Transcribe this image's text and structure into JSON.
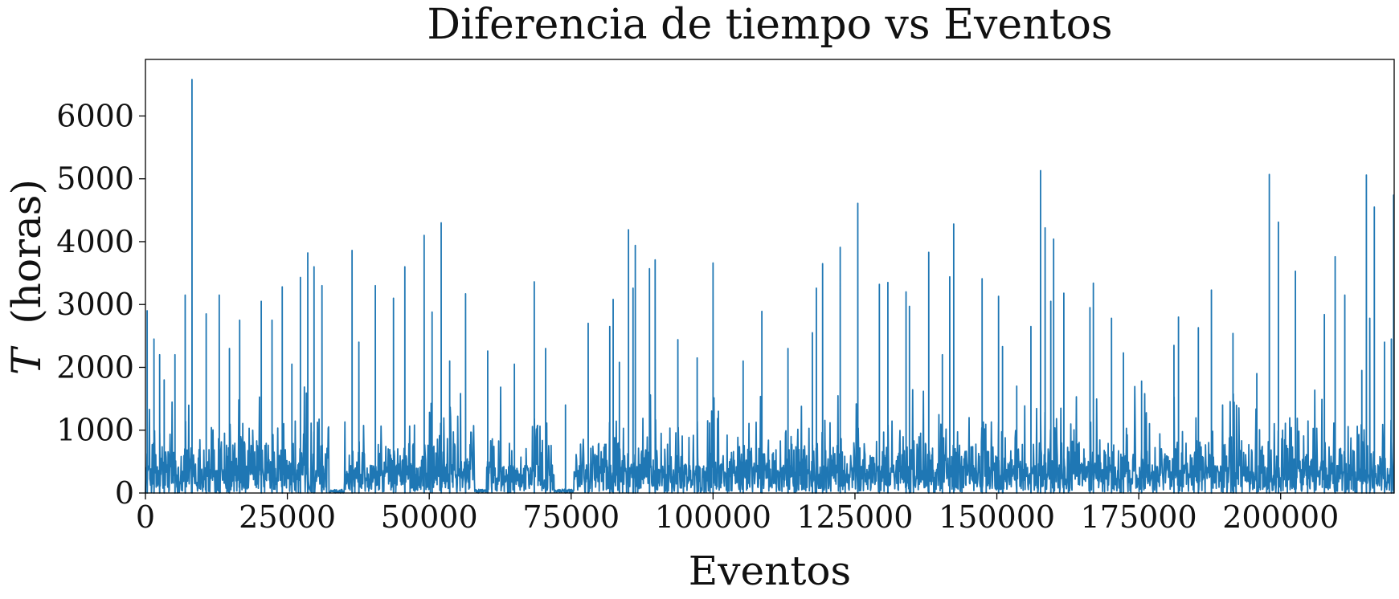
{
  "chart_data": {
    "type": "line",
    "title": "Diferencia de tiempo vs Eventos",
    "xlabel": "Eventos",
    "ylabel_var": "T",
    "ylabel_unit": "(horas)",
    "xlim": [
      0,
      220000
    ],
    "ylim": [
      0,
      6900
    ],
    "xticks": [
      0,
      25000,
      50000,
      75000,
      100000,
      125000,
      150000,
      175000,
      200000
    ],
    "yticks": [
      0,
      1000,
      2000,
      3000,
      4000,
      5000,
      6000
    ],
    "grid": false,
    "colors": {
      "series": "#1f77b4"
    },
    "series": [
      {
        "spikes": [
          [
            300,
            2900
          ],
          [
            1500,
            2450
          ],
          [
            2500,
            2200
          ],
          [
            3300,
            1800
          ],
          [
            5200,
            2200
          ],
          [
            7000,
            3150
          ],
          [
            8200,
            6580
          ],
          [
            10700,
            2850
          ],
          [
            13000,
            3150
          ],
          [
            14800,
            2300
          ],
          [
            16600,
            2750
          ],
          [
            20400,
            3050
          ],
          [
            22300,
            2750
          ],
          [
            24100,
            3280
          ],
          [
            25800,
            2050
          ],
          [
            27300,
            3430
          ],
          [
            28600,
            3820
          ],
          [
            29700,
            3600
          ],
          [
            31100,
            3300
          ],
          [
            36400,
            3860
          ],
          [
            37600,
            2400
          ],
          [
            40500,
            3300
          ],
          [
            43700,
            3100
          ],
          [
            45700,
            3600
          ],
          [
            49100,
            4100
          ],
          [
            50500,
            2880
          ],
          [
            52100,
            4300
          ],
          [
            53600,
            2100
          ],
          [
            56400,
            3170
          ],
          [
            60300,
            2260
          ],
          [
            65000,
            2050
          ],
          [
            68500,
            3360
          ],
          [
            70500,
            2300
          ],
          [
            74000,
            1400
          ],
          [
            78000,
            2700
          ],
          [
            81800,
            2650
          ],
          [
            82400,
            3080
          ],
          [
            83500,
            2080
          ],
          [
            85100,
            4190
          ],
          [
            85900,
            3260
          ],
          [
            86300,
            3940
          ],
          [
            88800,
            3570
          ],
          [
            89800,
            3710
          ],
          [
            93800,
            2440
          ],
          [
            97200,
            2150
          ],
          [
            100000,
            3660
          ],
          [
            105300,
            2100
          ],
          [
            108600,
            2890
          ],
          [
            113200,
            2300
          ],
          [
            117500,
            2550
          ],
          [
            118200,
            3260
          ],
          [
            119300,
            3650
          ],
          [
            122400,
            3910
          ],
          [
            125500,
            4610
          ],
          [
            129300,
            3320
          ],
          [
            130800,
            3350
          ],
          [
            134000,
            3200
          ],
          [
            134600,
            2970
          ],
          [
            138000,
            3830
          ],
          [
            140400,
            2200
          ],
          [
            141700,
            3440
          ],
          [
            142400,
            4280
          ],
          [
            147400,
            3410
          ],
          [
            150300,
            3130
          ],
          [
            151000,
            2330
          ],
          [
            153500,
            1700
          ],
          [
            156000,
            2650
          ],
          [
            157700,
            5130
          ],
          [
            158500,
            4220
          ],
          [
            159500,
            3050
          ],
          [
            160000,
            4040
          ],
          [
            161800,
            3180
          ],
          [
            166400,
            2950
          ],
          [
            167000,
            3340
          ],
          [
            170200,
            2780
          ],
          [
            172300,
            2230
          ],
          [
            175500,
            1780
          ],
          [
            181200,
            2350
          ],
          [
            182000,
            2800
          ],
          [
            185500,
            2630
          ],
          [
            187800,
            3230
          ],
          [
            191600,
            2540
          ],
          [
            195800,
            1900
          ],
          [
            198000,
            5070
          ],
          [
            199600,
            4310
          ],
          [
            202600,
            3530
          ],
          [
            207700,
            2840
          ],
          [
            209600,
            3760
          ],
          [
            211300,
            3150
          ],
          [
            214300,
            1950
          ],
          [
            215100,
            5060
          ],
          [
            215700,
            2780
          ],
          [
            216500,
            4550
          ],
          [
            218300,
            2400
          ],
          [
            219500,
            2450
          ],
          [
            219900,
            4740
          ]
        ],
        "quiet_intervals": [
          [
            32300,
            35000
          ],
          [
            58000,
            60000
          ],
          [
            72000,
            75500
          ]
        ]
      }
    ]
  }
}
